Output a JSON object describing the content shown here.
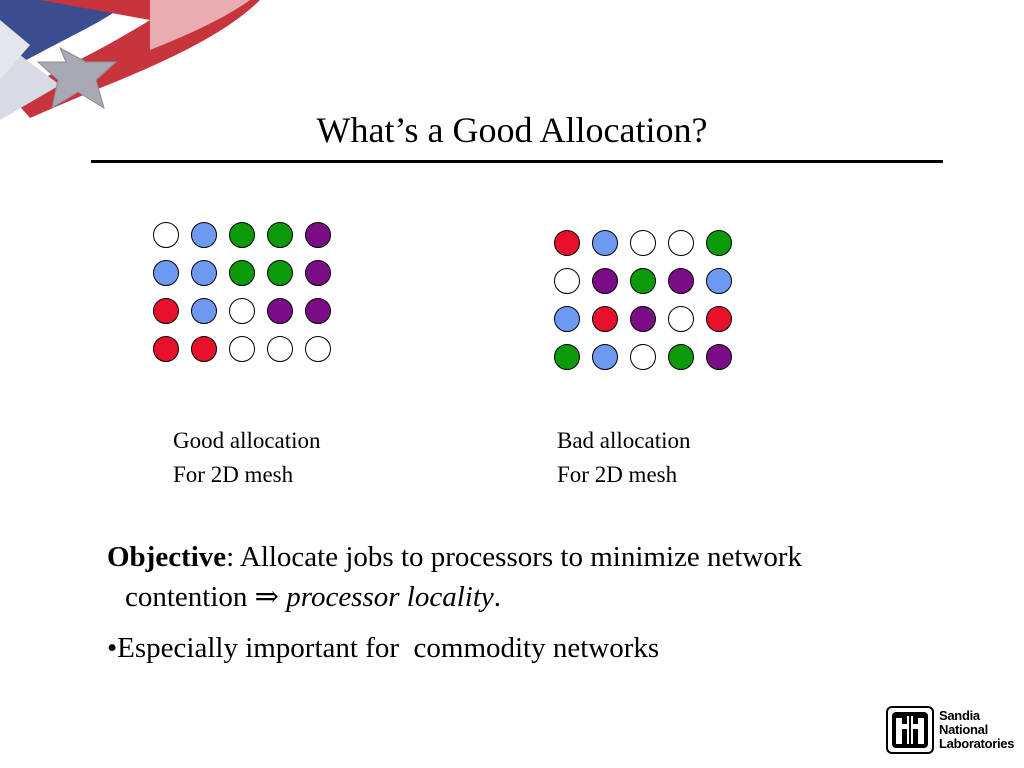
{
  "slide": {
    "title": "What’s a Good Allocation?"
  },
  "colors": {
    "white": "#ffffff",
    "blue": "#6d9af0",
    "green": "#0a9a0a",
    "purple": "#7a0c85",
    "red": "#e8102a"
  },
  "good_mesh": {
    "rows": [
      [
        "white",
        "blue",
        "green",
        "green",
        "purple"
      ],
      [
        "blue",
        "blue",
        "green",
        "green",
        "purple"
      ],
      [
        "red",
        "blue",
        "white",
        "purple",
        "purple"
      ],
      [
        "red",
        "red",
        "white",
        "white",
        "white"
      ]
    ],
    "caption_line1": "Good allocation",
    "caption_line2": "For 2D mesh"
  },
  "bad_mesh": {
    "rows": [
      [
        "red",
        "blue",
        "white",
        "white",
        "green"
      ],
      [
        "white",
        "purple",
        "green",
        "purple",
        "blue"
      ],
      [
        "blue",
        "red",
        "purple",
        "white",
        "red"
      ],
      [
        "green",
        "blue",
        "white",
        "green",
        "purple"
      ]
    ],
    "caption_line1": "Bad allocation",
    "caption_line2": "For 2D mesh"
  },
  "body": {
    "objective_label": "Objective",
    "objective_text": ": Allocate jobs to processors to minimize network",
    "objective_cont": "contention",
    "arrow": "⇒",
    "locality": "processor locality",
    "period": ".",
    "bullet_char": "•",
    "bullet_text": "Especially important for  commodity networks"
  },
  "logo": {
    "icon": "sandia-thunderbird-icon",
    "line1": "Sandia",
    "line2": "National",
    "line3": "Laboratories"
  }
}
